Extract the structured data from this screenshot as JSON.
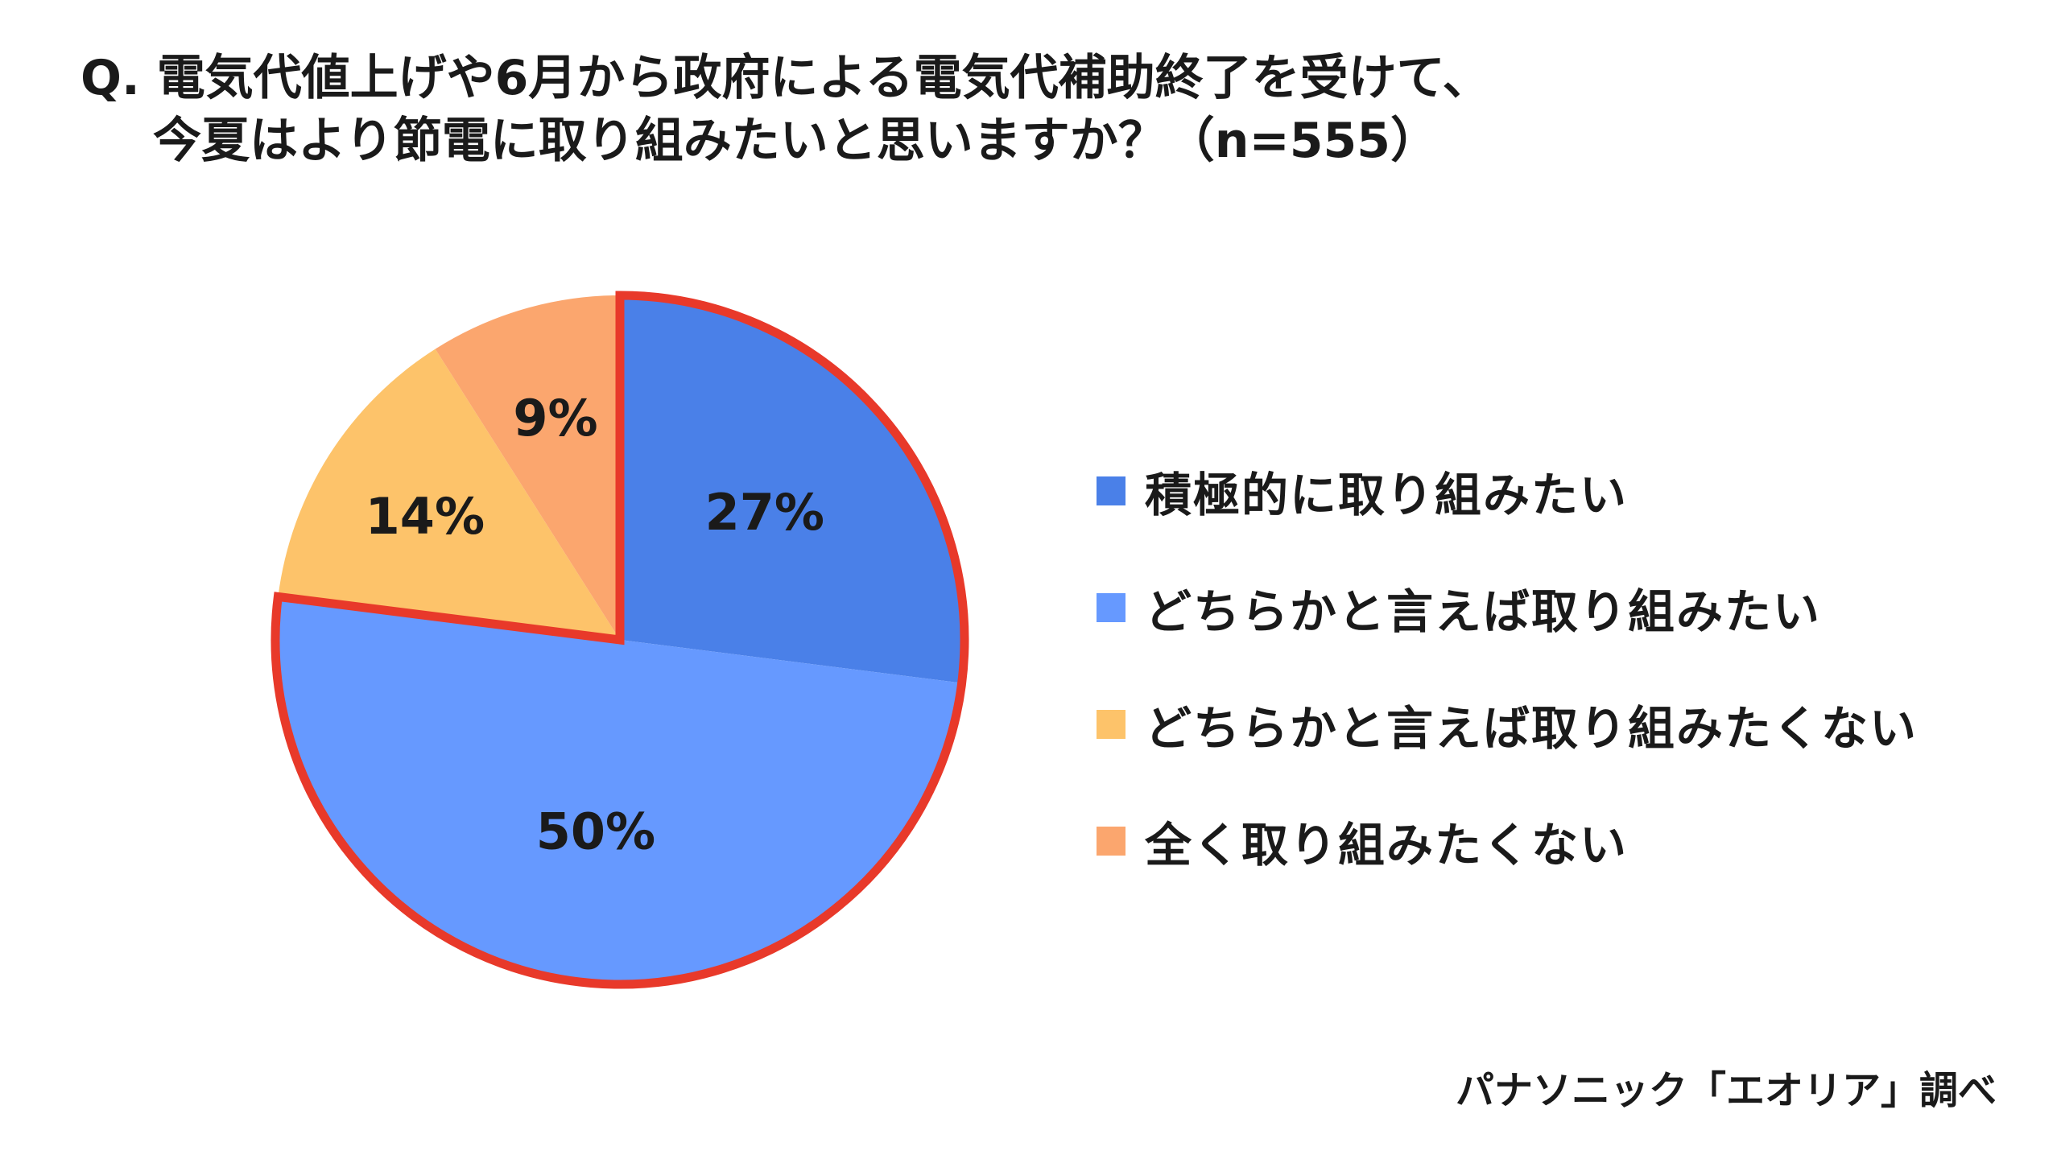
{
  "chart_data": {
    "type": "pie",
    "title_line1": "Q. 電気代値上げや6月から政府による電気代補助終了を受けて、",
    "title_line2": "今夏はより節電に取り組みたいと思いますか？（n=555）",
    "categories": [
      "積極的に取り組みたい",
      "どちらかと言えば取り組みたい",
      "どちらかと言えば取り組みたくない",
      "全く取り組みたくない"
    ],
    "values": [
      27,
      50,
      14,
      9
    ],
    "value_labels": [
      "27%",
      "50%",
      "14%",
      "9%"
    ],
    "colors": [
      "#4A80E8",
      "#6699FF",
      "#FDC36A",
      "#FBA66E"
    ],
    "highlight_color": "#E8392A",
    "highlighted": [
      0,
      1
    ],
    "legend_position": "right"
  },
  "source": "パナソニック「エオリア」調べ"
}
